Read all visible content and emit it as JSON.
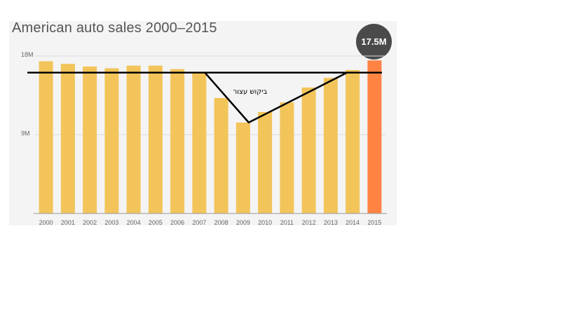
{
  "chart_data": {
    "type": "bar",
    "title": "American auto sales 2000–2015",
    "categories": [
      "2000",
      "2001",
      "2002",
      "2003",
      "2004",
      "2005",
      "2006",
      "2007",
      "2008",
      "2009",
      "2010",
      "2011",
      "2012",
      "2013",
      "2014",
      "2015"
    ],
    "values": [
      17.4,
      17.1,
      16.8,
      16.6,
      16.9,
      16.9,
      16.5,
      16.1,
      13.2,
      10.4,
      11.6,
      12.7,
      14.4,
      15.5,
      16.4,
      17.5
    ],
    "highlight_index": 15,
    "highlight_label": "17.5M",
    "y_ticks": [
      {
        "value": 18,
        "label": "18M"
      },
      {
        "value": 9,
        "label": "9M"
      }
    ],
    "ylim": [
      0,
      18
    ],
    "xlabel": "",
    "ylabel": "",
    "grid": true,
    "annotation": {
      "text": "ביקוש עצור",
      "baseline_value": 16.1,
      "trough": {
        "x": "2009",
        "value": 10.4
      }
    },
    "colors": {
      "bar": "#f2c45a",
      "highlight_bar": "#ff8444",
      "gridline": "#dddddd",
      "axis_text": "#666666",
      "badge": "#4a4a4a",
      "annotation_line": "#000000",
      "panel": "#f4f4f4"
    }
  }
}
